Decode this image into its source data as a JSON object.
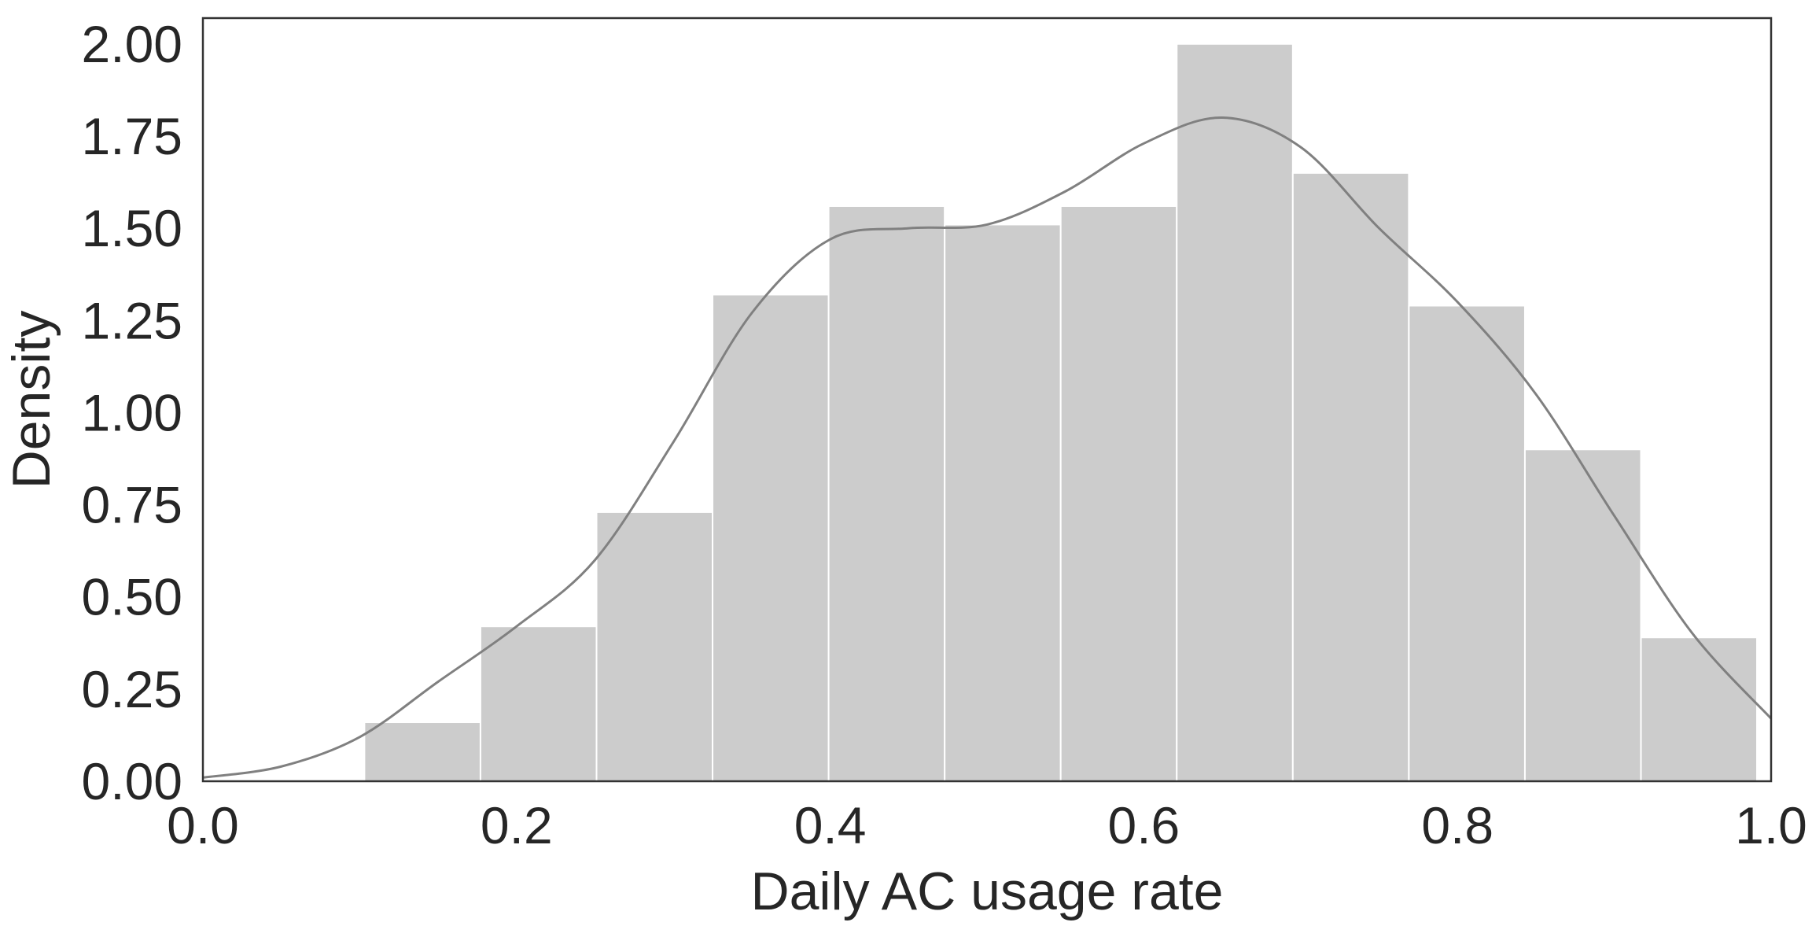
{
  "chart_data": {
    "type": "bar",
    "subtype": "histogram-with-kde",
    "xlabel": "Daily AC usage rate",
    "ylabel": "Density",
    "xlim": [
      0.0,
      1.0
    ],
    "ylim": [
      0.0,
      2.07
    ],
    "xticks": [
      "0.0",
      "0.2",
      "0.4",
      "0.6",
      "0.8",
      "1.0"
    ],
    "yticks": [
      "0.00",
      "0.25",
      "0.50",
      "0.75",
      "1.00",
      "1.25",
      "1.50",
      "1.75",
      "2.00"
    ],
    "grid": false,
    "legend": "none",
    "bins": [
      {
        "start": 0.103,
        "end": 0.177,
        "density": 0.16
      },
      {
        "start": 0.177,
        "end": 0.251,
        "density": 0.42
      },
      {
        "start": 0.251,
        "end": 0.325,
        "density": 0.73
      },
      {
        "start": 0.325,
        "end": 0.399,
        "density": 1.32
      },
      {
        "start": 0.399,
        "end": 0.473,
        "density": 1.56
      },
      {
        "start": 0.473,
        "end": 0.547,
        "density": 1.51
      },
      {
        "start": 0.547,
        "end": 0.621,
        "density": 1.56
      },
      {
        "start": 0.621,
        "end": 0.695,
        "density": 2.0
      },
      {
        "start": 0.695,
        "end": 0.769,
        "density": 1.65
      },
      {
        "start": 0.769,
        "end": 0.843,
        "density": 1.29
      },
      {
        "start": 0.843,
        "end": 0.917,
        "density": 0.9
      },
      {
        "start": 0.917,
        "end": 0.991,
        "density": 0.39
      }
    ],
    "kde": {
      "x": [
        0.0,
        0.05,
        0.1,
        0.15,
        0.2,
        0.25,
        0.3,
        0.35,
        0.4,
        0.45,
        0.5,
        0.55,
        0.6,
        0.65,
        0.7,
        0.75,
        0.8,
        0.85,
        0.9,
        0.95,
        1.0
      ],
      "y": [
        0.01,
        0.04,
        0.12,
        0.27,
        0.42,
        0.6,
        0.92,
        1.27,
        1.47,
        1.5,
        1.51,
        1.6,
        1.73,
        1.8,
        1.72,
        1.5,
        1.3,
        1.05,
        0.72,
        0.4,
        0.17
      ]
    },
    "colors": {
      "bar_fill": "#cccccc",
      "bar_edge": "#ffffff",
      "kde_line": "#808080",
      "axes_frame": "#333333",
      "text": "#262626"
    }
  }
}
